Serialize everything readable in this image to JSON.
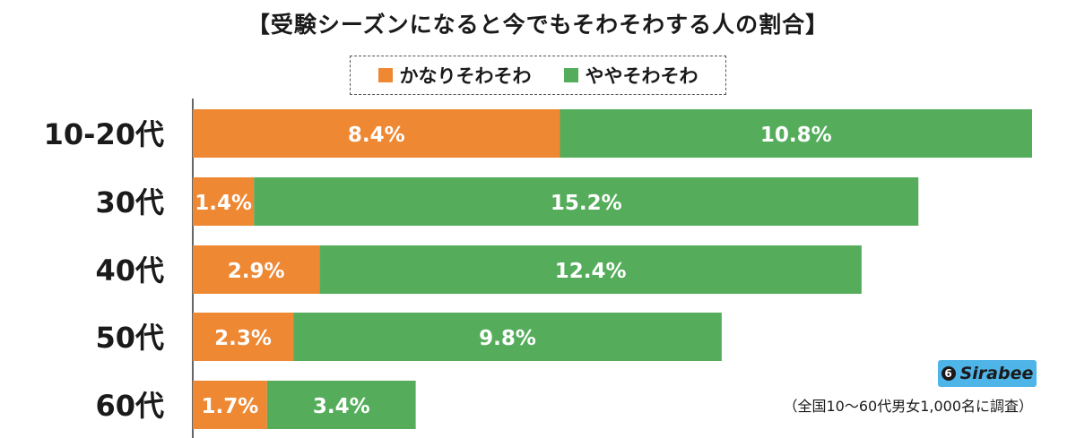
{
  "chart_data": {
    "type": "bar",
    "orientation": "horizontal",
    "stacked": true,
    "title": "【受験シーズンになると今でもそわそわする人の割合】",
    "categories": [
      "10-20代",
      "30代",
      "40代",
      "50代",
      "60代"
    ],
    "series": [
      {
        "name": "かなりそわそわ",
        "values": [
          8.4,
          1.4,
          2.9,
          2.3,
          1.7
        ],
        "labels": [
          "8.4%",
          "1.4%",
          "2.9%",
          "2.3%",
          "1.7%"
        ]
      },
      {
        "name": "ややそわそわ",
        "values": [
          10.8,
          15.2,
          12.4,
          9.8,
          3.4
        ],
        "labels": [
          "10.8%",
          "15.2%",
          "12.4%",
          "9.8%",
          "3.4%"
        ]
      }
    ],
    "xlim": [
      0,
      19.2
    ],
    "grid": false,
    "legend_position": "top-center",
    "colors": {
      "かなりそわそわ": "#ee8833",
      "ややそわそわ": "#55ad5c"
    }
  },
  "branding": {
    "logo_text": "Sirabee",
    "logo_mark": "6",
    "logo_bg": "#4fb4e8"
  },
  "footnote": "（全国10〜60代男女1,000名に調査）"
}
